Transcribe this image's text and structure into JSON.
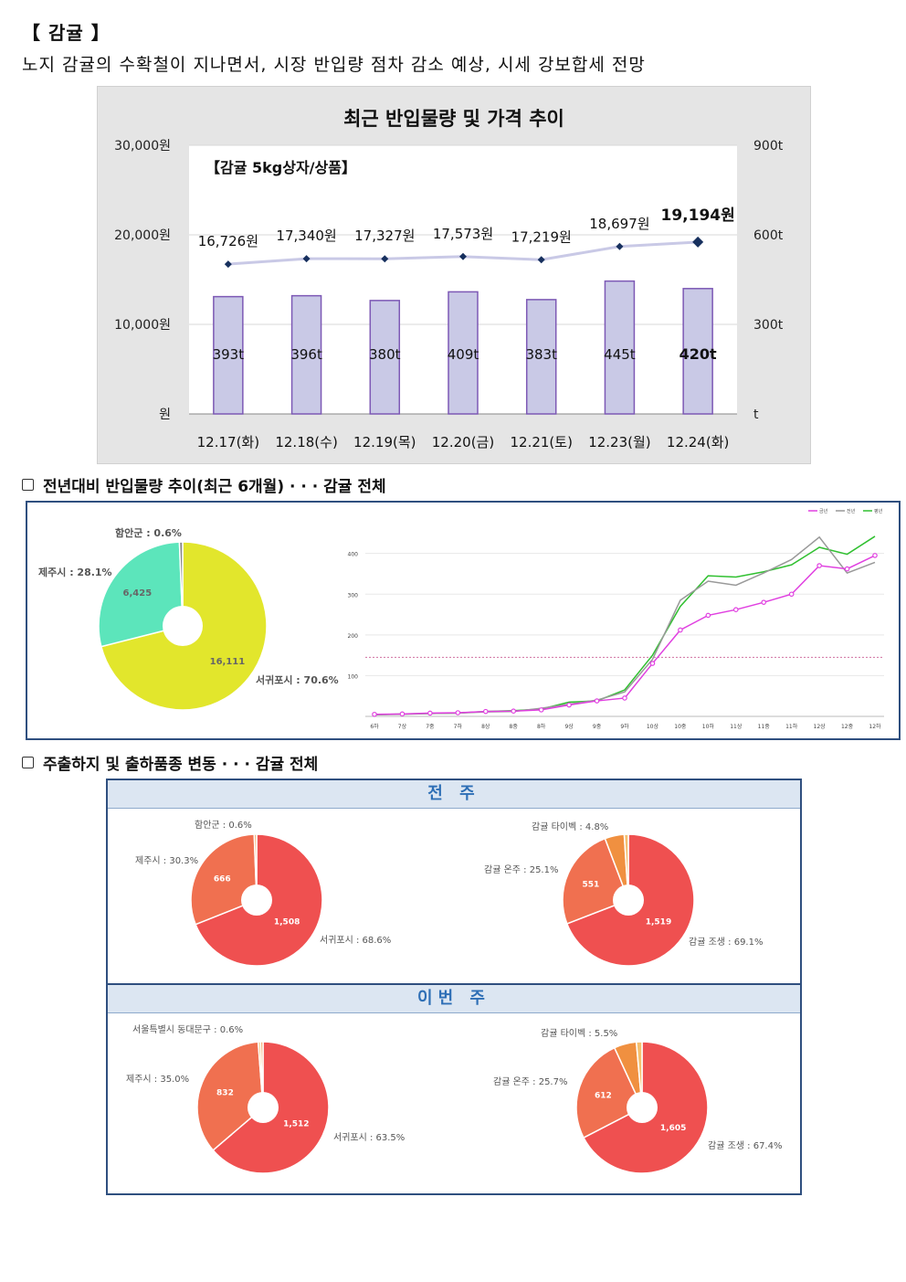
{
  "header": {
    "title": "【 감귤 】",
    "subtitle": "노지 감귤의 수확철이 지나면서, 시장 반입량 점차 감소 예상, 시세 강보합세 전망"
  },
  "chart_data": [
    {
      "type": "bar",
      "title": "최근 반입물량 및 가격 추이",
      "subtitle": "【감귤 5kg상자/상품】",
      "categories": [
        "12.17(화)",
        "12.18(수)",
        "12.19(목)",
        "12.20(금)",
        "12.21(토)",
        "12.23(월)",
        "12.24(화)"
      ],
      "series": [
        {
          "kind": "bar",
          "axis": "right",
          "values": [
            393,
            396,
            380,
            409,
            383,
            445,
            420
          ],
          "labels": [
            "393t",
            "396t",
            "380t",
            "409t",
            "383t",
            "445t",
            "420t"
          ]
        },
        {
          "kind": "line",
          "axis": "left",
          "values": [
            16726,
            17340,
            17327,
            17573,
            17219,
            18697,
            19194
          ],
          "labels": [
            "16,726원",
            "17,340원",
            "17,327원",
            "17,573원",
            "17,219원",
            "18,697원",
            "19,194원"
          ]
        }
      ],
      "y_left_ticks": [
        "30,000원",
        "20,000원",
        "10,000원",
        "원"
      ],
      "y_right_ticks": [
        "900t",
        "600t",
        "300t",
        "t"
      ],
      "ylim_left": [
        0,
        30000
      ],
      "ylim_right": [
        0,
        900
      ],
      "colors": {
        "bar": "#c9c9e6",
        "bar_border": "#7d59b5",
        "line": "#c9c9e6",
        "marker": "#17305e"
      }
    },
    {
      "type": "pie",
      "donut": true,
      "slices": [
        {
          "label": "서귀포시 : 70.6%",
          "value": 16111,
          "value_label": "16,111",
          "color": "#e2e62c"
        },
        {
          "label": "제주시 : 28.1%",
          "value": 6425,
          "value_label": "6,425",
          "color": "#5ce5bb"
        },
        {
          "label": "함안군 : 0.6%",
          "value": 140,
          "value_label": "",
          "color": "#888888"
        }
      ]
    },
    {
      "type": "line",
      "legend": [
        "금년",
        "전년",
        "평년"
      ],
      "x": [
        "6하",
        "7상",
        "7중",
        "7하",
        "8상",
        "8중",
        "8하",
        "9상",
        "9중",
        "9하",
        "10상",
        "10중",
        "10하",
        "11상",
        "11중",
        "11하",
        "12상",
        "12중",
        "12하"
      ],
      "yticks": [
        "400",
        "300",
        "200",
        "100"
      ],
      "ylim": [
        0,
        480
      ],
      "reference_value": 145,
      "series": [
        {
          "name": "금년",
          "color": "#e040e0",
          "values": [
            5,
            6,
            8,
            9,
            12,
            13,
            16,
            28,
            38,
            45,
            130,
            212,
            248,
            262,
            280,
            300,
            370,
            362,
            395
          ]
        },
        {
          "name": "전년",
          "color": "#999999",
          "values": [
            4,
            5,
            7,
            8,
            11,
            12,
            20,
            30,
            40,
            60,
            140,
            285,
            332,
            322,
            352,
            385,
            440,
            352,
            378
          ]
        },
        {
          "name": "평년",
          "color": "#30c030",
          "values": [
            4,
            6,
            7,
            8,
            12,
            14,
            18,
            35,
            38,
            65,
            150,
            270,
            345,
            342,
            355,
            372,
            415,
            398,
            442
          ]
        }
      ]
    },
    {
      "type": "pie",
      "donut": true,
      "group": "전 주",
      "slices": [
        {
          "label": "서귀포시 : 68.6%",
          "value": 1508,
          "value_label": "1,508",
          "color": "#ef5050"
        },
        {
          "label": "제주시 : 30.3%",
          "value": 666,
          "value_label": "666",
          "color": "#f07050"
        },
        {
          "label": "함안군 : 0.6%",
          "value": 13,
          "value_label": "",
          "color": "#f3b070"
        }
      ]
    },
    {
      "type": "pie",
      "donut": true,
      "group": "전 주",
      "slices": [
        {
          "label": "감귤 조생 : 69.1%",
          "value": 1519,
          "value_label": "1,519",
          "color": "#ef5050"
        },
        {
          "label": "감귤 온주 : 25.1%",
          "value": 551,
          "value_label": "551",
          "color": "#f07050"
        },
        {
          "label": "감귤 타이벡 : 4.8%",
          "value": 105,
          "value_label": "",
          "color": "#f09040"
        },
        {
          "label": "",
          "value": 22,
          "value_label": "",
          "color": "#f5c070"
        }
      ]
    },
    {
      "type": "pie",
      "donut": true,
      "group": "이번 주",
      "slices": [
        {
          "label": "서귀포시 : 63.5%",
          "value": 1512,
          "value_label": "1,512",
          "color": "#ef5050"
        },
        {
          "label": "제주시 : 35.0%",
          "value": 832,
          "value_label": "832",
          "color": "#f07050"
        },
        {
          "label": "서울특별시 동대문구 : 0.6%",
          "value": 14,
          "value_label": "",
          "color": "#f5c070"
        },
        {
          "label": "",
          "value": 14,
          "value_label": "",
          "color": "#f3a060"
        }
      ]
    },
    {
      "type": "pie",
      "donut": true,
      "group": "이번 주",
      "slices": [
        {
          "label": "감귤 조생 : 67.4%",
          "value": 1605,
          "value_label": "1,605",
          "color": "#ef5050"
        },
        {
          "label": "감귤 온주 : 25.7%",
          "value": 612,
          "value_label": "612",
          "color": "#f07050"
        },
        {
          "label": "감귤 타이벡 : 5.5%",
          "value": 131,
          "value_label": "",
          "color": "#f09040"
        },
        {
          "label": "",
          "value": 33,
          "value_label": "",
          "color": "#f5c070"
        }
      ]
    }
  ],
  "sections": {
    "trend_title": "전년대비 반입물량 추이(최근 6개월) · · · 감귤 전체",
    "dist_title": "주출하지 및 출하품종 변동 · · · 감귤 전체",
    "prev_week": "전 주",
    "this_week": "이번 주"
  }
}
